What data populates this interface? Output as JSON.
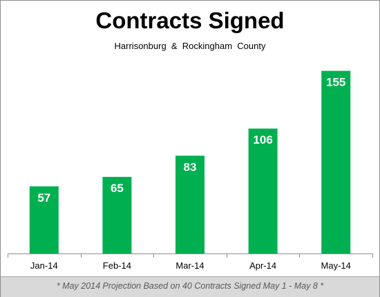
{
  "chart_data": {
    "type": "bar",
    "title": "Contracts Signed",
    "subtitle": "Harrisonburg  &  Rockingham  County",
    "categories": [
      "Jan-14",
      "Feb-14",
      "Mar-14",
      "Apr-14",
      "May-14"
    ],
    "values": [
      57,
      65,
      83,
      106,
      155
    ],
    "ylim": [
      0,
      170
    ],
    "grid": false,
    "data_labels": true,
    "bar_color": "#00b050",
    "label_color": "#ffffff",
    "footnote": "* May 2014 Projection Based on 40 Contracts Signed May 1 - May 8 *"
  }
}
